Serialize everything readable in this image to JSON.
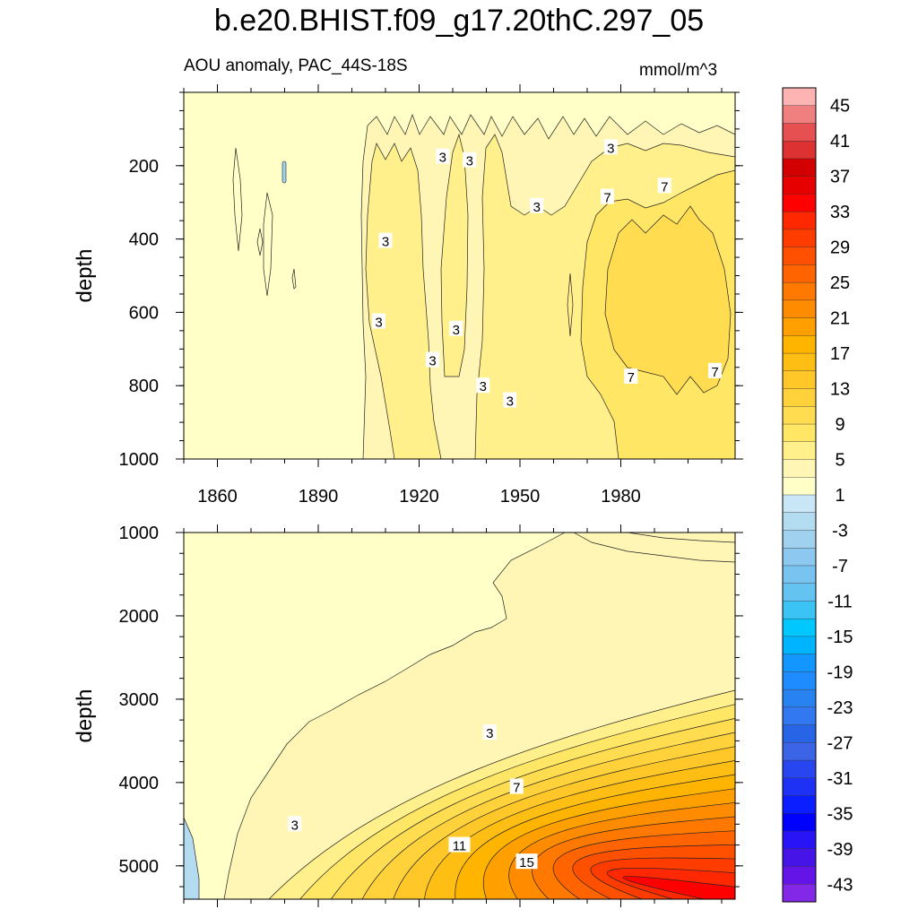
{
  "title": "b.e20.BHIST.f09_g17.20thC.297_05",
  "subtitle_left": "AOU anomaly, PAC_44S-18S",
  "subtitle_right": "mmol/m^3",
  "chart_data": [
    {
      "type": "heatmap",
      "panel": "upper",
      "variable": "AOU anomaly",
      "units": "mmol/m^3",
      "xlabel": "",
      "ylabel": "depth",
      "xlim": [
        1850,
        2014
      ],
      "ylim": [
        1000,
        0
      ],
      "x_ticks": [
        1860,
        1890,
        1920,
        1950,
        1980
      ],
      "y_ticks": [
        200,
        400,
        600,
        800,
        1000
      ],
      "contour_labels": [
        {
          "text": "3",
          "x": 1935,
          "y": 185
        },
        {
          "text": "3",
          "x": 1927,
          "y": 175
        },
        {
          "text": "3",
          "x": 1977,
          "y": 150
        },
        {
          "text": "3",
          "x": 1955,
          "y": 310
        },
        {
          "text": "7",
          "x": 1976,
          "y": 285
        },
        {
          "text": "7",
          "x": 1993,
          "y": 255
        },
        {
          "text": "3",
          "x": 1910,
          "y": 405
        },
        {
          "text": "3",
          "x": 1908,
          "y": 625
        },
        {
          "text": "3",
          "x": 1931,
          "y": 645
        },
        {
          "text": "3",
          "x": 1924,
          "y": 730
        },
        {
          "text": "3",
          "x": 1939,
          "y": 800
        },
        {
          "text": "3",
          "x": 1947,
          "y": 840
        },
        {
          "text": "7",
          "x": 1983,
          "y": 775
        },
        {
          "text": "7",
          "x": 2008,
          "y": 760
        }
      ]
    },
    {
      "type": "heatmap",
      "panel": "lower",
      "variable": "AOU anomaly",
      "units": "mmol/m^3",
      "xlabel": "",
      "ylabel": "depth",
      "xlim": [
        1850,
        2014
      ],
      "ylim": [
        5400,
        1000
      ],
      "x_ticks": [
        1860,
        1890,
        1920,
        1950,
        1980
      ],
      "y_ticks": [
        1000,
        2000,
        3000,
        4000,
        5000
      ],
      "contour_labels": [
        {
          "text": "3",
          "x": 1941,
          "y": 3400
        },
        {
          "text": "7",
          "x": 1949,
          "y": 4050
        },
        {
          "text": "3",
          "x": 1883,
          "y": 4500
        },
        {
          "text": "11",
          "x": 1932,
          "y": 4750
        },
        {
          "text": "15",
          "x": 1952,
          "y": 4950
        }
      ]
    }
  ],
  "colorbar": {
    "labels": [
      "45",
      "41",
      "37",
      "33",
      "29",
      "25",
      "21",
      "17",
      "13",
      "9",
      "5",
      "1",
      "-3",
      "-7",
      "-11",
      "-15",
      "-19",
      "-23",
      "-27",
      "-31",
      "-35",
      "-39",
      "-43"
    ],
    "colors": [
      "#ffb4b4",
      "#f08080",
      "#e65050",
      "#dc3232",
      "#d20000",
      "#e60000",
      "#ff0000",
      "#ff2800",
      "#ff3c00",
      "#ff5000",
      "#ff6400",
      "#ff7800",
      "#ff8c00",
      "#ffa000",
      "#ffb400",
      "#ffbe14",
      "#ffc828",
      "#ffd23c",
      "#ffdc50",
      "#ffe664",
      "#fff08c",
      "#fff5b4",
      "#ffffc8",
      "#c8e6f5",
      "#b4dcf0",
      "#a0d2f0",
      "#8cc8f0",
      "#78c3f0",
      "#64c3f0",
      "#3cc3f5",
      "#00c8ff",
      "#00b4ff",
      "#1496ff",
      "#1e8cff",
      "#2882f0",
      "#3278f0",
      "#2864e6",
      "#3c64e6",
      "#2846f0",
      "#1e32f5",
      "#0a1eff",
      "#0000ff",
      "#2814f5",
      "#4614e6",
      "#6414e6",
      "#8228e6"
    ]
  }
}
